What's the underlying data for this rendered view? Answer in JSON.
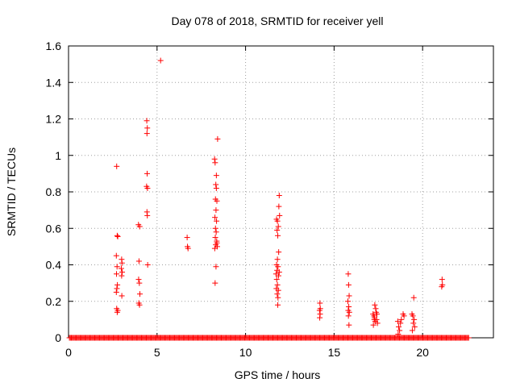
{
  "chart_data": {
    "type": "scatter",
    "title": "Day 078 of 2018, SRMTID for receiver yell",
    "xlabel": "GPS time / hours",
    "ylabel": "SRMTID / TECUs",
    "xlim": [
      0,
      24
    ],
    "ylim": [
      0,
      1.6
    ],
    "xticks": [
      0,
      5,
      10,
      15,
      20
    ],
    "yticks": [
      0,
      0.2,
      0.4,
      0.6,
      0.8,
      1,
      1.2,
      1.4,
      1.6
    ],
    "xtick_labels": [
      "0",
      "5",
      "10",
      "15",
      "20"
    ],
    "ytick_labels": [
      "0",
      "0.2",
      "0.4",
      "0.6",
      "0.8",
      "1",
      "1.2",
      "1.4",
      "1.6"
    ],
    "grid": true,
    "marker": "+",
    "color": "#ff0000",
    "baseline_x_range": [
      0.05,
      22.6
    ],
    "baseline_step": 0.055,
    "series": [
      {
        "name": "SRMTID",
        "points": [
          [
            2.72,
            0.94
          ],
          [
            2.75,
            0.56
          ],
          [
            2.78,
            0.555
          ],
          [
            2.7,
            0.45
          ],
          [
            2.74,
            0.39
          ],
          [
            2.71,
            0.35
          ],
          [
            2.76,
            0.29
          ],
          [
            2.73,
            0.27
          ],
          [
            2.7,
            0.25
          ],
          [
            2.72,
            0.16
          ],
          [
            2.75,
            0.14
          ],
          [
            2.78,
            0.15
          ],
          [
            3.0,
            0.43
          ],
          [
            3.02,
            0.41
          ],
          [
            2.98,
            0.38
          ],
          [
            3.03,
            0.36
          ],
          [
            3.0,
            0.34
          ],
          [
            3.01,
            0.23
          ],
          [
            3.95,
            0.62
          ],
          [
            4.02,
            0.61
          ],
          [
            3.98,
            0.42
          ],
          [
            3.96,
            0.32
          ],
          [
            4.0,
            0.3
          ],
          [
            4.03,
            0.24
          ],
          [
            3.97,
            0.19
          ],
          [
            4.01,
            0.18
          ],
          [
            4.42,
            1.19
          ],
          [
            4.45,
            1.15
          ],
          [
            4.43,
            1.12
          ],
          [
            4.44,
            0.9
          ],
          [
            4.41,
            0.83
          ],
          [
            4.46,
            0.82
          ],
          [
            4.43,
            0.69
          ],
          [
            4.45,
            0.67
          ],
          [
            4.47,
            0.4
          ],
          [
            5.2,
            1.52
          ],
          [
            6.7,
            0.55
          ],
          [
            6.72,
            0.5
          ],
          [
            6.75,
            0.49
          ],
          [
            8.25,
            0.98
          ],
          [
            8.28,
            0.96
          ],
          [
            8.32,
            0.84
          ],
          [
            8.35,
            0.82
          ],
          [
            8.3,
            0.76
          ],
          [
            8.38,
            0.75
          ],
          [
            8.33,
            0.7
          ],
          [
            8.27,
            0.66
          ],
          [
            8.36,
            0.64
          ],
          [
            8.3,
            0.6
          ],
          [
            8.34,
            0.58
          ],
          [
            8.29,
            0.55
          ],
          [
            8.37,
            0.53
          ],
          [
            8.32,
            0.51
          ],
          [
            8.26,
            0.49
          ],
          [
            8.4,
            0.5
          ],
          [
            8.35,
            0.89
          ],
          [
            8.42,
            1.09
          ],
          [
            8.38,
            0.52
          ],
          [
            8.33,
            0.39
          ],
          [
            8.28,
            0.3
          ],
          [
            11.75,
            0.65
          ],
          [
            11.8,
            0.64
          ],
          [
            11.85,
            0.61
          ],
          [
            11.78,
            0.59
          ],
          [
            11.82,
            0.56
          ],
          [
            11.9,
            0.78
          ],
          [
            11.88,
            0.72
          ],
          [
            11.92,
            0.67
          ],
          [
            11.87,
            0.47
          ],
          [
            11.8,
            0.43
          ],
          [
            11.75,
            0.4
          ],
          [
            11.83,
            0.39
          ],
          [
            11.78,
            0.37
          ],
          [
            11.9,
            0.36
          ],
          [
            11.72,
            0.35
          ],
          [
            11.86,
            0.34
          ],
          [
            11.76,
            0.32
          ],
          [
            11.8,
            0.29
          ],
          [
            11.74,
            0.27
          ],
          [
            11.85,
            0.26
          ],
          [
            11.79,
            0.24
          ],
          [
            11.83,
            0.22
          ],
          [
            11.82,
            0.18
          ],
          [
            14.2,
            0.19
          ],
          [
            14.22,
            0.16
          ],
          [
            14.18,
            0.15
          ],
          [
            14.21,
            0.13
          ],
          [
            14.19,
            0.11
          ],
          [
            15.8,
            0.35
          ],
          [
            15.82,
            0.29
          ],
          [
            15.85,
            0.23
          ],
          [
            15.78,
            0.2
          ],
          [
            15.83,
            0.17
          ],
          [
            15.8,
            0.15
          ],
          [
            15.86,
            0.14
          ],
          [
            15.81,
            0.12
          ],
          [
            15.84,
            0.07
          ],
          [
            17.2,
            0.13
          ],
          [
            17.25,
            0.12
          ],
          [
            17.3,
            0.18
          ],
          [
            17.35,
            0.16
          ],
          [
            17.28,
            0.11
          ],
          [
            17.4,
            0.1
          ],
          [
            17.32,
            0.09
          ],
          [
            17.45,
            0.08
          ],
          [
            17.22,
            0.07
          ],
          [
            17.38,
            0.14
          ],
          [
            17.42,
            0.13
          ],
          [
            17.27,
            0.1
          ],
          [
            18.6,
            0.09
          ],
          [
            18.65,
            0.06
          ],
          [
            18.7,
            0.04
          ],
          [
            18.62,
            0.02
          ],
          [
            18.75,
            0.08
          ],
          [
            18.9,
            0.13
          ],
          [
            18.95,
            0.12
          ],
          [
            18.8,
            0.1
          ],
          [
            19.4,
            0.13
          ],
          [
            19.45,
            0.12
          ],
          [
            19.5,
            0.22
          ],
          [
            19.52,
            0.1
          ],
          [
            19.48,
            0.08
          ],
          [
            19.55,
            0.06
          ],
          [
            19.42,
            0.04
          ],
          [
            21.1,
            0.32
          ],
          [
            21.12,
            0.29
          ],
          [
            21.08,
            0.28
          ]
        ]
      }
    ]
  }
}
